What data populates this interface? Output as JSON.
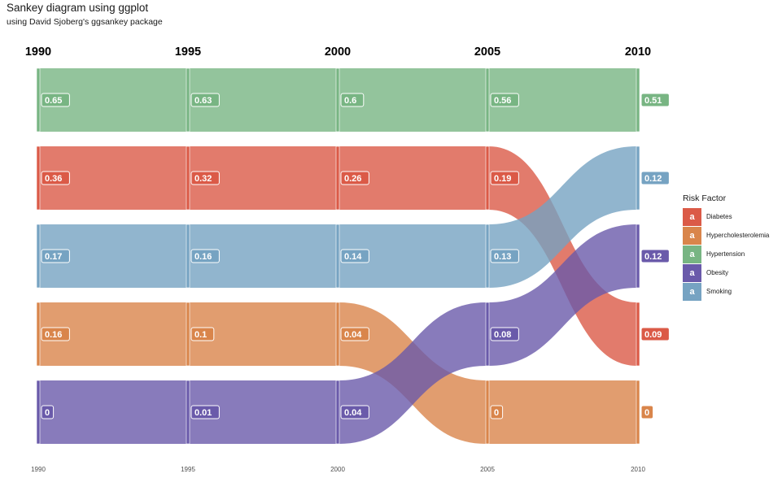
{
  "title": "Sankey diagram using ggplot",
  "subtitle": "using David Sjoberg's ggsankey package",
  "legend": {
    "title": "Risk Factor",
    "key_glyph": "a",
    "placement": "right",
    "items": [
      {
        "label": "Diabetes",
        "color": "#DB5A47"
      },
      {
        "label": "Hypercholesterolemia",
        "color": "#D9854B"
      },
      {
        "label": "Hypertension",
        "color": "#78B583"
      },
      {
        "label": "Obesity",
        "color": "#6A5AAA"
      },
      {
        "label": "Smoking",
        "color": "#76A3C2"
      }
    ]
  },
  "chart_data": {
    "type": "sankey",
    "title": "Sankey diagram using ggplot",
    "subtitle": "using David Sjoberg's ggsankey package",
    "x": [
      "1990",
      "1995",
      "2000",
      "2005",
      "2010"
    ],
    "colors": {
      "Diabetes": "#DB5A47",
      "Hypercholesterolemia": "#D9854B",
      "Hypertension": "#78B583",
      "Obesity": "#6A5AAA",
      "Smoking": "#76A3C2"
    },
    "series": [
      {
        "name": "Hypertension",
        "values": [
          0.65,
          0.63,
          0.6,
          0.56,
          0.51
        ],
        "ranks": [
          1,
          1,
          1,
          1,
          1
        ]
      },
      {
        "name": "Diabetes",
        "values": [
          0.36,
          0.32,
          0.26,
          0.19,
          0.09
        ],
        "ranks": [
          2,
          2,
          2,
          2,
          4
        ]
      },
      {
        "name": "Smoking",
        "values": [
          0.17,
          0.16,
          0.14,
          0.13,
          0.12
        ],
        "ranks": [
          3,
          3,
          3,
          3,
          2
        ]
      },
      {
        "name": "Hypercholesterolemia",
        "values": [
          0.16,
          0.1,
          0.04,
          0,
          0
        ],
        "ranks": [
          4,
          4,
          4,
          5,
          5
        ]
      },
      {
        "name": "Obesity",
        "values": [
          0,
          0.01,
          0.04,
          0.08,
          0.12
        ],
        "ranks": [
          5,
          5,
          5,
          4,
          3
        ]
      }
    ],
    "value_labels": {
      "Hypertension": [
        "0.65",
        "0.63",
        "0.6",
        "0.56",
        "0.51"
      ],
      "Diabetes": [
        "0.36",
        "0.32",
        "0.26",
        "0.19",
        "0.09"
      ],
      "Smoking": [
        "0.17",
        "0.16",
        "0.14",
        "0.13",
        "0.12"
      ],
      "Hypercholesterolemia": [
        "0.16",
        "0.1",
        "0.04",
        "0",
        "0"
      ],
      "Obesity": [
        "0",
        "0.01",
        "0.04",
        "0.08",
        "0.12"
      ]
    },
    "grid": false
  }
}
